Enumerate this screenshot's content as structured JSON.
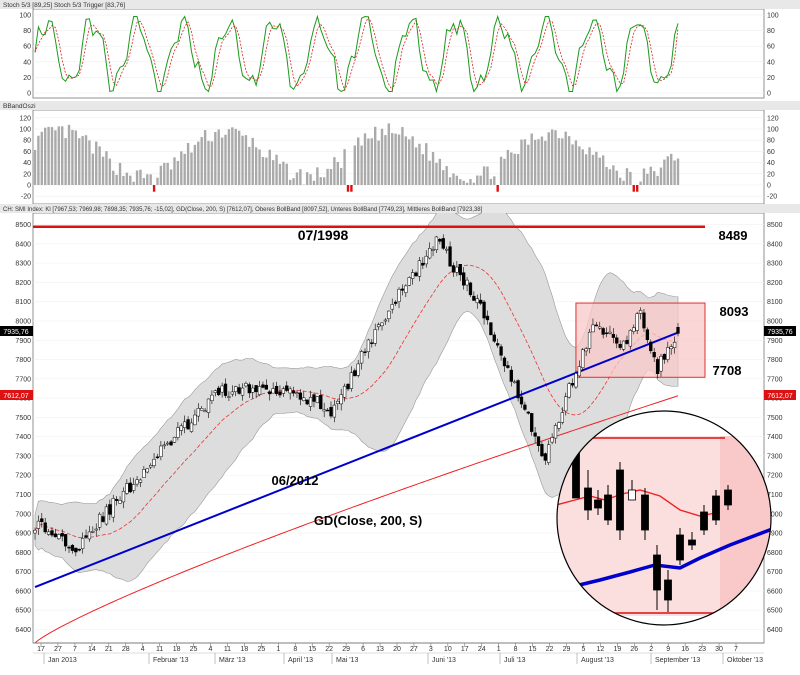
{
  "stoch_panel": {
    "title": "Stoch 5/3 [89,25]   Stoch 5/3 Trigger [83,76]",
    "ticks": [
      0,
      20,
      40,
      60,
      80,
      100
    ],
    "tick_labels": [
      "0",
      "20",
      "40",
      "60",
      "80",
      "100"
    ],
    "ylim": [
      0,
      100
    ],
    "colors": {
      "main": "#1a9a1a",
      "trigger": "#dd2222"
    }
  },
  "band_panel": {
    "title": "BBandOszi",
    "ticks": [
      -20,
      0,
      20,
      40,
      60,
      80,
      100,
      120
    ],
    "tick_labels": [
      "-20",
      "0",
      "20",
      "40",
      "60",
      "80",
      "100",
      "120"
    ],
    "ylim": [
      -25,
      125
    ],
    "colors": {
      "positive": "#aaaaaa",
      "negative": "#e01010"
    }
  },
  "main_panel": {
    "title": "CH: SMI Index:   Kl [7967,53; 7969,98; 7898,35; 7935,76; -15,02],   GD(Close, 200, S) [7612,07],   Oberes BollBand [8097,52],   Unteres BollBand [7749,23],   Mittleres BollBand [7923,38]",
    "ticks": [
      6400,
      6500,
      6600,
      6700,
      6800,
      6900,
      7000,
      7100,
      7200,
      7300,
      7400,
      7500,
      7600,
      7700,
      7800,
      7900,
      8000,
      8100,
      8200,
      8300,
      8400,
      8500
    ],
    "tick_labels": [
      "6400",
      "6500",
      "6600",
      "6700",
      "6800",
      "6900",
      "7000",
      "7100",
      "7200",
      "7300",
      "7400",
      "7500",
      "7600",
      "7700",
      "7800",
      "7900",
      "8000",
      "8100",
      "8200",
      "8300",
      "8400",
      "8500"
    ],
    "ylim": [
      6330,
      8560
    ],
    "last_close_label": "7935,76",
    "sma200_label": "7612,07",
    "annotations": {
      "resistance_1998": "07/1998",
      "resistance_value": "8489",
      "box_top": "8093",
      "box_bottom": "7708",
      "trend_start": "06/2012",
      "sma_caption": "GD(Close, 200, S)"
    },
    "colors": {
      "resistance": "#dd1111",
      "trendline": "#0000cc",
      "sma200": "#ee2222",
      "boll_fill": "#dddddd",
      "box_fill": "#f9c8c8",
      "box_stroke": "#e03030"
    }
  },
  "x_axis": {
    "day_labels": [
      "17",
      "27",
      "7",
      "14",
      "21",
      "28",
      "4",
      "11",
      "18",
      "25",
      "4",
      "11",
      "18",
      "25",
      "1",
      "8",
      "15",
      "22",
      "29",
      "6",
      "13",
      "20",
      "27",
      "3",
      "10",
      "17",
      "24",
      "1",
      "8",
      "15",
      "22",
      "29",
      "5",
      "12",
      "19",
      "26",
      "2",
      "9",
      "16",
      "23",
      "30",
      "7"
    ],
    "month_labels": [
      "Jan 2013",
      "Februar '13",
      "März '13",
      "April '13",
      "Mai '13",
      "Juni '13",
      "Juli '13",
      "August '13",
      "September '13",
      "Oktober '13"
    ]
  },
  "chart_data": [
    {
      "type": "line",
      "title": "Stoch 5/3",
      "series": [
        {
          "name": "Stoch 5/3",
          "last": 89.25
        },
        {
          "name": "Stoch 5/3 Trigger",
          "last": 83.76
        }
      ],
      "ylim": [
        0,
        100
      ]
    },
    {
      "type": "bar",
      "title": "BBandOszi",
      "ylim": [
        -20,
        120
      ]
    },
    {
      "type": "candlestick",
      "title": "CH: SMI Index",
      "ylabel": "",
      "ylim": [
        6400,
        8500
      ],
      "last_candle": {
        "open": 7967.53,
        "high": 7969.98,
        "low": 7898.35,
        "close": 7935.76,
        "change": -15.02
      },
      "sma200_last": 7612.07,
      "bollinger_last": {
        "upper": 8097.52,
        "lower": 7749.23,
        "middle": 7923.38
      },
      "levels": {
        "resistance_1998": 8489,
        "range_top": 8093,
        "range_bottom": 7708
      },
      "trendline": {
        "from": "06/2012",
        "start": 6620,
        "end": 7940
      },
      "key_closes": {
        "jan_start": 6950,
        "late_jan": 6830,
        "feb_mid": 7380,
        "mar_start": 7640,
        "apr_mid": 7600,
        "apr_low": 7530,
        "may_peak": 8420,
        "jun_low": 7280,
        "jul_start": 7700,
        "aug_high": 8040,
        "sep_high": 7970,
        "last": 7935.76
      }
    }
  ]
}
